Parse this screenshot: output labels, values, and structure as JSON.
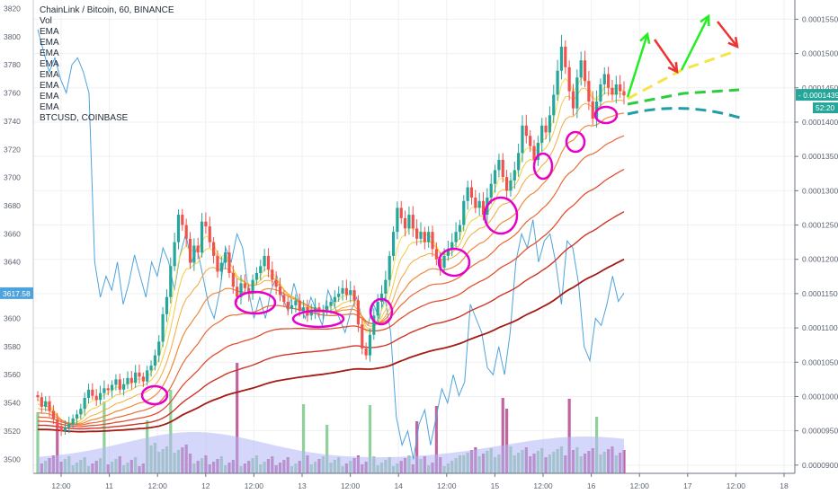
{
  "header": {
    "title": "ChainLink / Bitcoin, 60, BINANCE",
    "indicators": [
      "Vol",
      "EMA",
      "EMA",
      "EMA",
      "EMA",
      "EMA",
      "EMA",
      "EMA",
      "EMA",
      "BTCUSD, COINBASE"
    ]
  },
  "colors": {
    "up": "#26a69a",
    "down": "#ef5350",
    "btc_line": "#4ea3dc",
    "volume_area": "#b3b6f5",
    "highlight": "#e600c8",
    "arrow_green": "#22ee22",
    "arrow_red": "#ee3333",
    "proj_yellow": "#f5e54a",
    "proj_green": "#2ecc40",
    "proj_teal": "#1e9ea6",
    "last_badge": "#26a69a",
    "btc_badge": "#4ea3dc"
  },
  "chart_data": {
    "type": "candlestick",
    "left_axis": {
      "label": "BTCUSD, COINBASE",
      "ticks": [
        3500,
        3520,
        3540,
        3560,
        3580,
        3600,
        3620,
        3640,
        3660,
        3680,
        3700,
        3720,
        3740,
        3760,
        3780,
        3800,
        3820
      ],
      "range": [
        3490,
        3826
      ]
    },
    "right_axis": {
      "ticks": [
        "0.00009000",
        "0.00009500",
        "0.00010000",
        "0.00010500",
        "0.00011000",
        "0.00011500",
        "0.00012000",
        "0.00012500",
        "0.00013000",
        "0.00013500",
        "0.00014000",
        "0.00014500",
        "0.00015000",
        "0.00015500"
      ],
      "range": [
        8.88e-05,
        0.0001578
      ]
    },
    "x_ticks": [
      "12:00",
      "11",
      "12:00",
      "12",
      "12:00",
      "13",
      "12:00",
      "14",
      "12:00",
      "15",
      "12:00",
      "16",
      "12:00",
      "17",
      "12:00",
      "18"
    ],
    "last_price": "0.00014391",
    "countdown": "52:20",
    "btc_last": "3617.58",
    "candles_close": [
      9.99e-05,
      9.85e-05,
      9.93e-05,
      9.79e-05,
      9.67e-05,
      9.57e-05,
      9.5e-05,
      9.55e-05,
      9.6e-05,
      9.68e-05,
      9.74e-05,
      9.82e-05,
      9.98e-05,
      0.000101,
      0.0001001,
      9.95e-05,
      0.0001005,
      0.0001012,
      0.0001009,
      0.0001017,
      0.0001025,
      0.000101,
      0.0001018,
      0.0001027,
      0.000102,
      0.0001035,
      0.0001029,
      0.0001022,
      0.0001038,
      0.0001045,
      0.000106,
      0.000108,
      0.000112,
      0.0001145,
      0.000119,
      0.0001225,
      0.0001265,
      0.000125,
      0.000123,
      0.0001195,
      0.000122,
      0.000121,
      0.0001255,
      0.0001248,
      0.0001225,
      0.0001205,
      0.0001182,
      0.0001195,
      0.000121,
      0.000118,
      0.000116,
      0.0001145,
      0.0001165,
      0.0001158,
      0.000115,
      0.000117,
      0.000118,
      0.000119,
      0.0001205,
      0.0001185,
      0.000117,
      0.000116,
      0.0001148,
      0.0001138,
      0.0001128,
      0.0001133,
      0.000114,
      0.0001125,
      0.000113,
      0.0001118,
      0.0001123,
      0.000113,
      0.0001123,
      0.0001126,
      0.0001132,
      0.0001138,
      0.0001145,
      0.000115,
      0.0001158,
      0.0001148,
      0.0001155,
      0.000114,
      0.0001105,
      0.000107,
      0.000106,
      0.000109,
      0.0001118,
      0.0001138,
      0.000115,
      0.000117,
      0.0001205,
      0.000124,
      0.0001275,
      0.000126,
      0.0001245,
      0.0001265,
      0.0001245,
      0.000123,
      0.000124,
      0.0001225,
      0.000124,
      0.0001215,
      0.00012,
      0.0001188,
      0.0001205,
      0.0001215,
      0.0001225,
      0.000124,
      0.000125,
      0.0001285,
      0.0001305,
      0.000129,
      0.0001275,
      0.0001285,
      0.0001265,
      0.000129,
      0.000131,
      0.000133,
      0.0001345,
      0.000132,
      0.00013,
      0.0001315,
      0.000133,
      0.0001355,
      0.0001395,
      0.000138,
      0.0001365,
      0.0001345,
      0.000137,
      0.0001395,
      0.0001385,
      0.000141,
      0.000144,
      0.0001475,
      0.000151,
      0.000148,
      0.0001445,
      0.000142,
      0.0001465,
      0.000149,
      0.000146,
      0.000143,
      0.0001405,
      0.000143,
      0.0001455,
      0.000147,
      0.000145,
      0.000144,
      0.0001455,
      0.0001445,
      0.0001439
    ],
    "ema_series_count": 8,
    "btc_series": [
      3805,
      3790,
      3775,
      3785,
      3770,
      3760,
      3780,
      3785,
      3775,
      3760,
      3640,
      3615,
      3630,
      3620,
      3640,
      3610,
      3625,
      3645,
      3630,
      3615,
      3640,
      3630,
      3650,
      3640,
      3620,
      3645,
      3660,
      3640,
      3650,
      3630,
      3610,
      3600,
      3620,
      3650,
      3640,
      3660,
      3650,
      3620,
      3600,
      3615,
      3600,
      3620,
      3630,
      3615,
      3605,
      3625,
      3610,
      3600,
      3615,
      3605,
      3595,
      3620,
      3610,
      3600,
      3590,
      3605,
      3615,
      3600,
      3595,
      3610,
      3600,
      3615,
      3590,
      3530,
      3510,
      3520,
      3500,
      3525,
      3535,
      3510,
      3530,
      3550,
      3540,
      3560,
      3545,
      3555,
      3610,
      3600,
      3590,
      3565,
      3560,
      3580,
      3560,
      3590,
      3640,
      3660,
      3650,
      3670,
      3640,
      3655,
      3660,
      3640,
      3610,
      3655,
      3650,
      3625,
      3580,
      3570,
      3600,
      3595,
      3610,
      3630,
      3612,
      3618
    ],
    "annotations": [
      "ellipses",
      "up-arrows",
      "down-arrows",
      "projections"
    ]
  }
}
